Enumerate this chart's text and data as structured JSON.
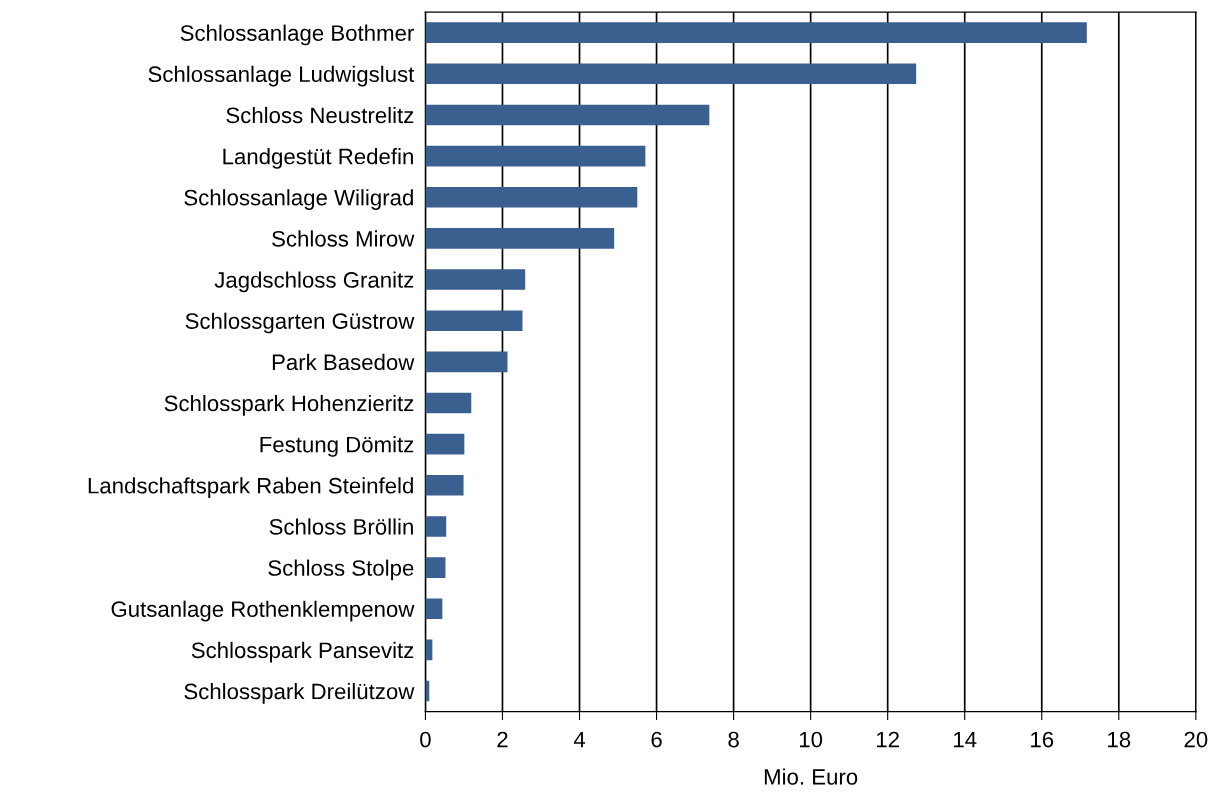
{
  "chart_data": {
    "type": "bar",
    "orientation": "horizontal",
    "xlabel": "Mio. Euro",
    "categories": [
      "Schlossanlage Bothmer",
      "Schlossanlage Ludwigslust",
      "Schloss Neustrelitz",
      "Landgestüt Redefin",
      "Schlossanlage Wiligrad",
      "Schloss Mirow",
      "Jagdschloss Granitz",
      "Schlossgarten Güstrow",
      "Park Basedow",
      "Schlosspark Hohenzieritz",
      "Festung Dömitz",
      "Landschaftspark Raben Steinfeld",
      "Schloss Bröllin",
      "Schloss Stolpe",
      "Gutsanlage Rothenklempenow",
      "Schlosspark Pansevitz",
      "Schlosspark Dreilützow"
    ],
    "values": [
      17.17,
      12.74,
      7.37,
      5.71,
      5.5,
      4.9,
      2.59,
      2.52,
      2.13,
      1.19,
      1.01,
      0.99,
      0.54,
      0.52,
      0.44,
      0.18,
      0.1
    ],
    "color": "#3a6090",
    "xlim": [
      0,
      20
    ],
    "xticks": [
      0,
      2,
      4,
      6,
      8,
      10,
      12,
      14,
      16,
      18,
      20
    ],
    "grid": "x"
  }
}
